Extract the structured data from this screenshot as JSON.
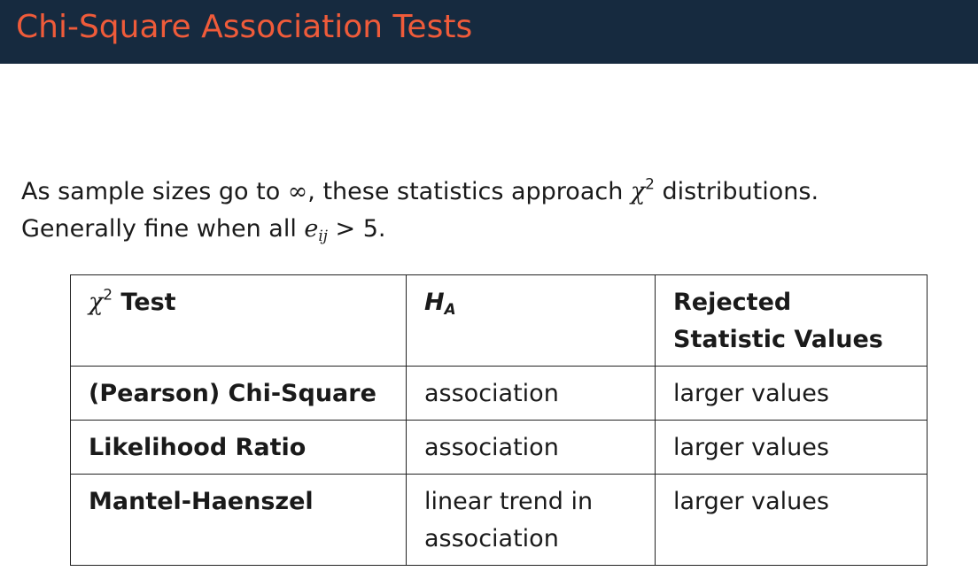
{
  "slide": {
    "title": "Chi-Square Association Tests"
  },
  "intro": {
    "line1_prefix": "As sample sizes go to ",
    "line1_infinity": "∞",
    "line1_middle": ", these statistics approach ",
    "line1_chi": "χ",
    "line1_chi_sup": "2",
    "line1_suffix": " distributions.",
    "line2_prefix": "Generally fine when all ",
    "line2_e": "e",
    "line2_e_sub": "ij",
    "line2_suffix": " > 5."
  },
  "table": {
    "headers": {
      "col1_chi": "χ",
      "col1_chi_sup": "2",
      "col1_text": " Test",
      "col2_h": "H",
      "col2_h_sub": "A",
      "col3": "Rejected Statistic Values"
    },
    "rows": [
      {
        "test": "(Pearson) Chi-Square",
        "ha": "association",
        "rejected": "larger values"
      },
      {
        "test": "Likelihood Ratio",
        "ha": "association",
        "rejected": "larger values"
      },
      {
        "test": "Mantel-Haenszel",
        "ha": "linear trend in association",
        "rejected": "larger values"
      }
    ]
  },
  "colors": {
    "title_bar": "#162a3f",
    "title_text": "#ef5b3a",
    "body_text": "#1a1a1a"
  }
}
